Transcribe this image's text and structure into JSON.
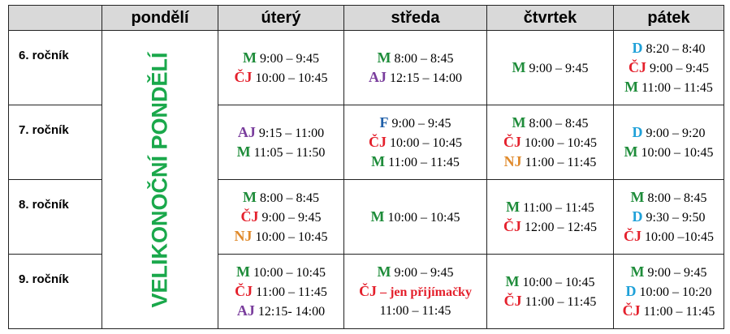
{
  "colors": {
    "M": "#1e8c3a",
    "ČJ": "#e4202c",
    "AJ": "#7a3e9d",
    "D": "#1ea0d8",
    "F": "#1f5fa8",
    "NJ": "#e08a2c",
    "holiday": "#1aa84b",
    "header_bg": "#d9d9d9"
  },
  "days": [
    "pondělí",
    "úterý",
    "středa",
    "čtvrtek",
    "pátek"
  ],
  "holiday_label": "VELIKONOČNÍ PONDĚLÍ",
  "rows": [
    {
      "grade": "6. ročník",
      "cells": [
        [
          {
            "s": "M",
            "t": "9:00 – 9:45"
          },
          {
            "s": "ČJ",
            "t": "10:00 – 10:45"
          }
        ],
        [
          {
            "s": "M",
            "t": "8:00 – 8:45"
          },
          {
            "s": "AJ",
            "t": "12:15 – 14:00"
          }
        ],
        [
          {
            "s": "M",
            "t": "9:00 – 9:45"
          }
        ],
        [
          {
            "s": "D",
            "t": "8:20 – 8:40"
          },
          {
            "s": "ČJ",
            "t": "9:00 – 9:45"
          },
          {
            "s": "M",
            "t": "11:00 – 11:45"
          }
        ]
      ]
    },
    {
      "grade": "7. ročník",
      "cells": [
        [
          {
            "s": "AJ",
            "t": "9:15 – 11:00"
          },
          {
            "s": "M",
            "t": "11:05 – 11:50"
          }
        ],
        [
          {
            "s": "F",
            "t": "9:00 – 9:45"
          },
          {
            "s": "ČJ",
            "t": "10:00 – 10:45"
          },
          {
            "s": "M",
            "t": "11:00 – 11:45"
          }
        ],
        [
          {
            "s": "M",
            "t": "8:00 – 8:45"
          },
          {
            "s": "ČJ",
            "t": "10:00 – 10:45"
          },
          {
            "s": "NJ",
            "t": "11:00 – 11:45"
          }
        ],
        [
          {
            "s": "D",
            "t": "9:00 – 9:20"
          },
          {
            "s": "M",
            "t": "10:00 – 10:45"
          }
        ]
      ]
    },
    {
      "grade": "8. ročník",
      "cells": [
        [
          {
            "s": "M",
            "t": "8:00 – 8:45"
          },
          {
            "s": "ČJ",
            "t": "9:00 – 9:45"
          },
          {
            "s": "NJ",
            "t": "10:00 – 10:45"
          }
        ],
        [
          {
            "s": "M",
            "t": "10:00 – 10:45"
          }
        ],
        [
          {
            "s": "M",
            "t": "11:00 – 11:45"
          },
          {
            "s": "ČJ",
            "t": "12:00 – 12:45"
          }
        ],
        [
          {
            "s": "M",
            "t": "8:00 – 8:45"
          },
          {
            "s": "D",
            "t": "9:30 – 9:50"
          },
          {
            "s": "ČJ",
            "t": "10:00 –10:45"
          }
        ]
      ]
    },
    {
      "grade": "9. ročník",
      "cells": [
        [
          {
            "s": "M",
            "t": "10:00 – 10:45"
          },
          {
            "s": "ČJ",
            "t": "11:00 – 11:45"
          },
          {
            "s": "AJ",
            "t": "12:15- 14:00"
          }
        ],
        [
          {
            "s": "M",
            "t": "9:00 – 9:45"
          },
          {
            "s": "ČJ",
            "t": "",
            "note": "– jen přijímačky"
          },
          {
            "s": "",
            "t": "11:00 – 11:45"
          }
        ],
        [
          {
            "s": "M",
            "t": "10:00 – 10:45"
          },
          {
            "s": "ČJ",
            "t": "11:00 – 11:45"
          }
        ],
        [
          {
            "s": "M",
            "t": "9:00 – 9:45"
          },
          {
            "s": "D",
            "t": "10:00 – 10:20"
          },
          {
            "s": "ČJ",
            "t": "11:00 – 11:45"
          }
        ]
      ]
    }
  ]
}
